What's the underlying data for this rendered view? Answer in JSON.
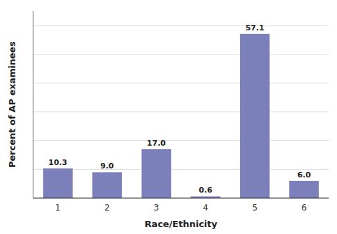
{
  "chart_data": {
    "type": "bar",
    "xlabel": "Race/Ethnicity",
    "ylabel": "Percent of AP examinees",
    "categories": [
      "1",
      "2",
      "3",
      "4",
      "5",
      "6"
    ],
    "values": [
      10.3,
      9.0,
      17.0,
      0.6,
      57.1,
      6.0
    ],
    "value_labels": [
      "10.3",
      "9.0",
      "17.0",
      "0.6",
      "57.1",
      "6.0"
    ],
    "color": "#7b7fba",
    "ylim": [
      0,
      65
    ],
    "yticks": [
      0,
      10,
      20,
      30,
      40,
      50,
      60
    ],
    "grid": true,
    "data_labels": true,
    "tick_labels": "x"
  }
}
